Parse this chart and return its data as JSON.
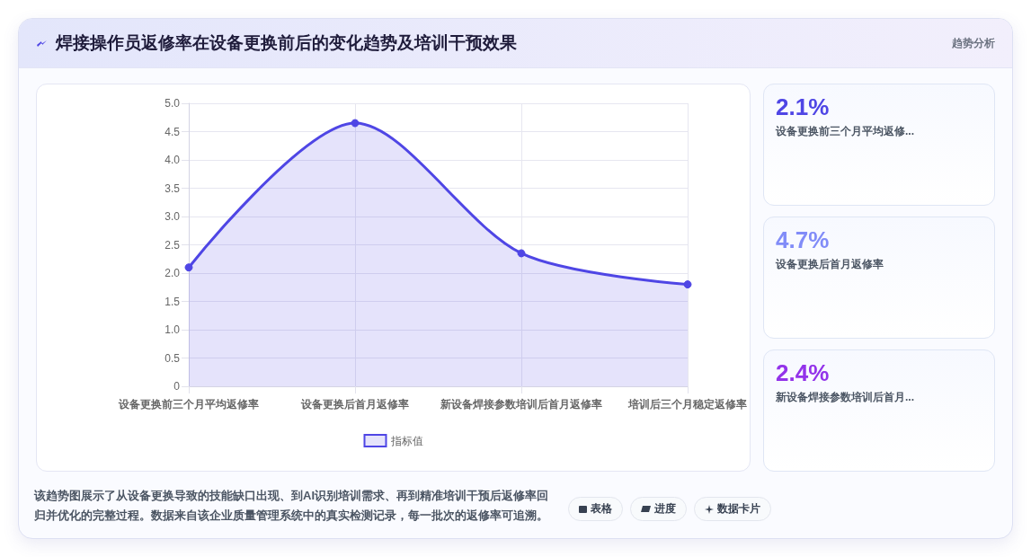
{
  "chart_data": [
    {
      "type": "area",
      "title": "焊接操作员返修率在设备更换前后的变化趋势及培训干预效果",
      "categories": [
        "设备更换前三个月平均返修率",
        "设备更换后首月返修率",
        "新设备焊接参数培训后首月返修率",
        "培训后三个月稳定返修率"
      ],
      "series": [
        {
          "name": "指标值",
          "color": "#4f46e5",
          "values": [
            2.1,
            4.65,
            2.35,
            1.8
          ]
        }
      ],
      "ylim": [
        0,
        5
      ],
      "yticks": [
        0,
        0.5,
        {
          "value": 1,
          "label": "1.0"
        },
        1.5,
        {
          "value": 2,
          "label": "2.0"
        },
        2.5,
        {
          "value": 3,
          "label": "3.0"
        },
        3.5,
        {
          "value": 4,
          "label": "4.0"
        },
        4.5,
        {
          "value": 5,
          "label": "5.0"
        }
      ],
      "grid": true,
      "legend": "bottom",
      "marker": "circle",
      "line_style": "solid",
      "annotations": [
        "该趋势图展示了从设备更换导致的技能缺口出现、到AI识别培训需求、再到精准培训干预后返修率回归并优化的完整过程。数据来自该企业质量管理系统中的真实检测记录，每一批次的返修率可追溯。",
        "表格",
        "进度",
        "数据卡片"
      ]
    },
    {
      "type": "other",
      "title": "趋势分析",
      "annotations": [
        "2.1%",
        "设备更换前三个月平均返修...",
        "4.7%",
        "设备更换后首月返修率",
        "2.4%",
        "新设备焊接参数培训后首月..."
      ]
    }
  ]
}
